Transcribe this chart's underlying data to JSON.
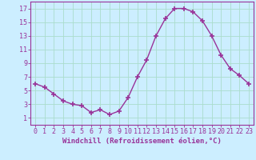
{
  "x": [
    0,
    1,
    2,
    3,
    4,
    5,
    6,
    7,
    8,
    9,
    10,
    11,
    12,
    13,
    14,
    15,
    16,
    17,
    18,
    19,
    20,
    21,
    22,
    23
  ],
  "y": [
    6.0,
    5.5,
    4.5,
    3.5,
    3.0,
    2.8,
    1.8,
    2.2,
    1.5,
    2.0,
    4.0,
    7.0,
    9.5,
    13.0,
    15.5,
    17.0,
    17.0,
    16.5,
    15.2,
    13.0,
    10.2,
    8.2,
    7.2,
    6.0
  ],
  "line_color": "#993399",
  "marker": "+",
  "marker_size": 4,
  "marker_lw": 1.2,
  "bg_color": "#cceeff",
  "grid_color": "#aaddcc",
  "xlabel": "Windchill (Refroidissement éolien,°C)",
  "xlim": [
    -0.5,
    23.5
  ],
  "ylim": [
    0,
    18
  ],
  "yticks": [
    1,
    3,
    5,
    7,
    9,
    11,
    13,
    15,
    17
  ],
  "xticks": [
    0,
    1,
    2,
    3,
    4,
    5,
    6,
    7,
    8,
    9,
    10,
    11,
    12,
    13,
    14,
    15,
    16,
    17,
    18,
    19,
    20,
    21,
    22,
    23
  ],
  "axis_color": "#993399",
  "label_fontsize": 6.5,
  "tick_fontsize": 6.0,
  "linewidth": 1.0
}
